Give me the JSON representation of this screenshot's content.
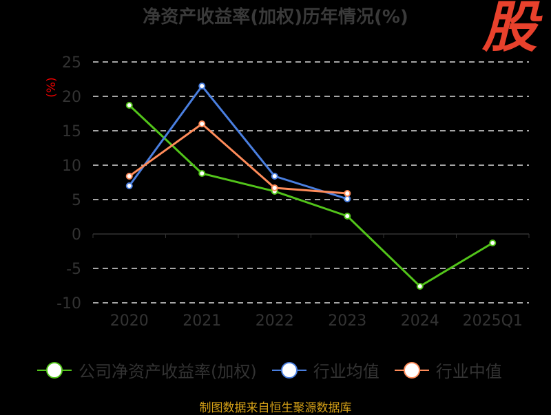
{
  "chart_data": {
    "type": "line",
    "title": "净资产收益率(加权)历年情况(%)",
    "ylabel": "(%)",
    "xlabel": "",
    "categories": [
      "2020",
      "2021",
      "2022",
      "2023",
      "2024",
      "2025Q1"
    ],
    "ylim": [
      -10,
      25
    ],
    "yticks": [
      25,
      20,
      15,
      10,
      5,
      0,
      -5,
      -10
    ],
    "grid": true,
    "legend_position": "bottom",
    "series": [
      {
        "name": "公司净资产收益率(加权)",
        "color": "#52c41a",
        "values": [
          18.7,
          8.8,
          6.2,
          2.6,
          -7.6,
          -1.3
        ]
      },
      {
        "name": "行业均值",
        "color": "#4a7fe0",
        "values": [
          7.0,
          21.5,
          8.4,
          5.1,
          null,
          null
        ]
      },
      {
        "name": "行业中值",
        "color": "#ff8c5a",
        "values": [
          8.4,
          16.0,
          6.7,
          5.9,
          null,
          null
        ]
      }
    ]
  },
  "source": "制图数据来自恒生聚源数据库",
  "logo_text": "股"
}
